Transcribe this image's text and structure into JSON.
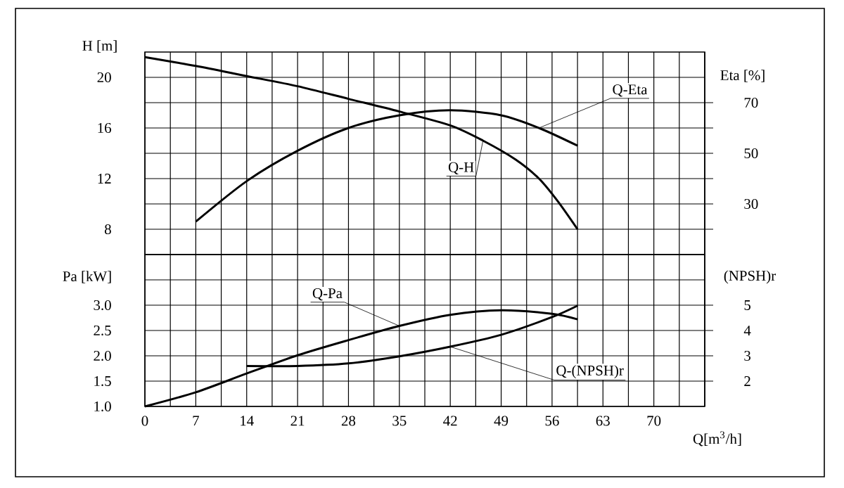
{
  "chart_data": [
    {
      "type": "line",
      "ylabel": "H [m]",
      "y2label": "Eta [%]",
      "xlim": [
        0,
        77
      ],
      "xticks": [
        0,
        {
          "value": 3.5,
          "label": null
        },
        7,
        {
          "value": 10.5,
          "label": null
        },
        14,
        {
          "value": 17.5,
          "label": null
        },
        21,
        {
          "value": 24.5,
          "label": null
        },
        28,
        {
          "value": 31.5,
          "label": null
        },
        35,
        {
          "value": 38.5,
          "label": null
        },
        42,
        {
          "value": 45.5,
          "label": null
        },
        49,
        {
          "value": 52.5,
          "label": null
        },
        56,
        {
          "value": 59.5,
          "label": null
        },
        63,
        {
          "value": 66.5,
          "label": null
        },
        70,
        {
          "value": 73.5,
          "label": null
        }
      ],
      "ylim": [
        6,
        22
      ],
      "yticks": [
        8,
        {
          "value": 10,
          "label": null
        },
        12,
        {
          "value": 14,
          "label": null
        },
        16,
        {
          "value": 18,
          "label": null
        },
        20
      ],
      "y2lim": [
        10,
        90
      ],
      "y2ticks": [
        {
          "value": 20,
          "label": null
        },
        30,
        {
          "value": 40,
          "label": null
        },
        50,
        {
          "value": 60,
          "label": null
        },
        70
      ],
      "grid": true,
      "tick_labels": "y",
      "series": [
        {
          "name": "Q-H",
          "color": "#000000",
          "axis": "y",
          "x": [
            0,
            7,
            14,
            21,
            28,
            35,
            42,
            46.5,
            51,
            54.2,
            56.8,
            59.5
          ],
          "values": [
            21.6,
            20.9,
            20.1,
            19.3,
            18.3,
            17.3,
            16.2,
            15.0,
            13.5,
            12.0,
            10.2,
            8.0
          ]
        },
        {
          "name": "Q-Eta",
          "color": "#000000",
          "axis": "y2",
          "x": [
            7,
            14,
            21,
            28,
            35,
            42,
            49,
            54.2,
            59.5
          ],
          "values": [
            23,
            39,
            51,
            60,
            65,
            67,
            65,
            60,
            53
          ]
        }
      ]
    },
    {
      "type": "line",
      "ylabel": "Pa [kW]",
      "y2label": "(NPSH)r",
      "xlabel": "Q[m$^{3}$/h]",
      "xlim": [
        0,
        77
      ],
      "xticks": [
        0,
        {
          "value": 3.5,
          "label": null
        },
        7,
        {
          "value": 10.5,
          "label": null
        },
        14,
        {
          "value": 17.5,
          "label": null
        },
        21,
        {
          "value": 24.5,
          "label": null
        },
        28,
        {
          "value": 31.5,
          "label": null
        },
        35,
        {
          "value": 38.5,
          "label": null
        },
        42,
        {
          "value": 45.5,
          "label": null
        },
        49,
        {
          "value": 52.5,
          "label": null
        },
        56,
        {
          "value": 59.5,
          "label": null
        },
        63,
        {
          "value": 66.5,
          "label": null
        },
        70,
        {
          "value": 73.5,
          "label": null
        }
      ],
      "ylim": [
        1,
        4
      ],
      "yticks": [
        {
          "value": 1,
          "label": "1.0"
        },
        1.5,
        {
          "value": 2,
          "label": "2.0"
        },
        2.5,
        {
          "value": 3,
          "label": "3.0"
        },
        {
          "value": 3.5,
          "label": null
        }
      ],
      "y2lim": [
        1,
        7
      ],
      "y2ticks": [
        2,
        3,
        4,
        5
      ],
      "grid": true,
      "series": [
        {
          "name": "Q-Pa",
          "color": "#000000",
          "axis": "y",
          "x": [
            0,
            7,
            14,
            21,
            28,
            35,
            42,
            49,
            56,
            59.5
          ],
          "values": [
            1.0,
            1.28,
            1.65,
            2.01,
            2.31,
            2.59,
            2.81,
            2.9,
            2.83,
            2.72
          ]
        },
        {
          "name": "Q-(NPSH)r",
          "color": "#000000",
          "axis": "y2",
          "x": [
            14,
            21,
            28,
            35,
            42,
            49,
            56,
            59.5
          ],
          "values": [
            2.6,
            2.6,
            2.7,
            2.98,
            3.36,
            3.83,
            4.53,
            4.98
          ]
        }
      ]
    }
  ]
}
